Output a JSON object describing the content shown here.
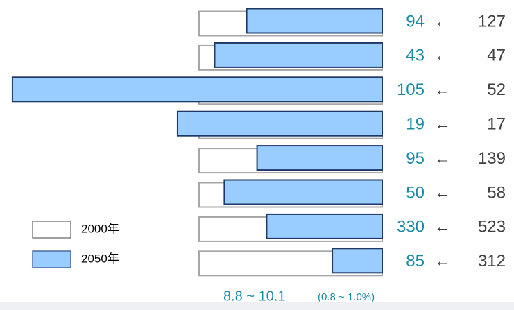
{
  "chart_data": {
    "type": "ratio-bar",
    "categories": [
      null,
      null,
      null,
      null,
      null,
      null,
      null,
      null
    ],
    "series": [
      {
        "name": "2000年",
        "color": "#ffffff",
        "values": [
          127,
          47,
          52,
          17,
          139,
          58,
          523,
          312
        ]
      },
      {
        "name": "2050年",
        "color": "#99ccff",
        "values": [
          94,
          43,
          105,
          19,
          95,
          50,
          330,
          85
        ]
      }
    ],
    "arrow": "←",
    "footer": {
      "range": "8.8 ~ 10.1",
      "percent": "(0.8 ~ 1.0%)"
    }
  }
}
